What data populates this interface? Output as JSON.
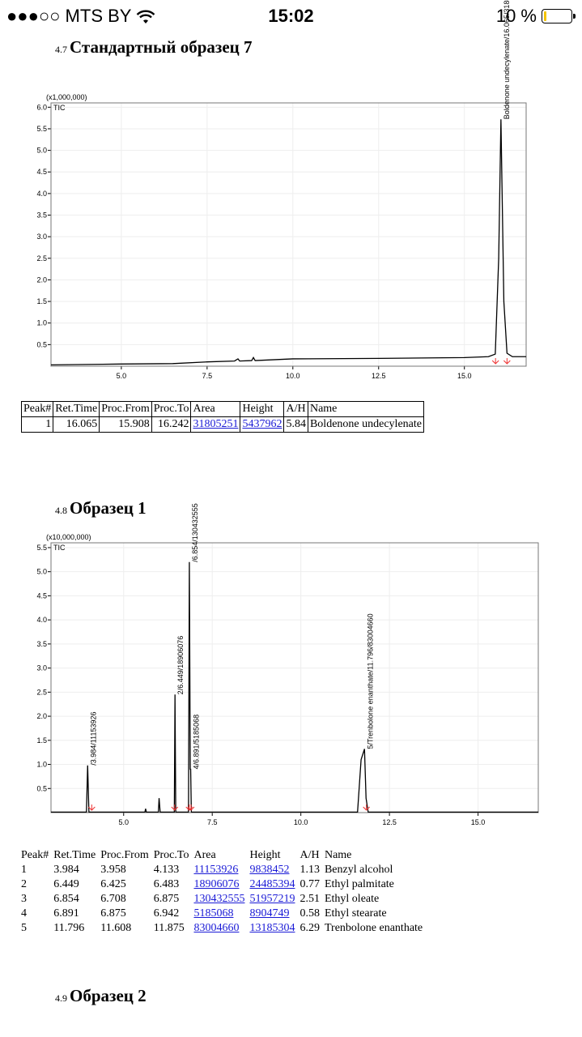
{
  "status_bar": {
    "carrier": "●●●○○ MTS BY",
    "time": "15:02",
    "battery": "10 %",
    "battery_level": 0.1,
    "battery_color": "#f5c400",
    "wifi_icon": "wifi-icon"
  },
  "sections": [
    {
      "number": "4.7",
      "title": "Стандартный образец 7"
    },
    {
      "number": "4.8",
      "title": "Образец 1"
    },
    {
      "number": "4.9",
      "title": "Образец 2"
    }
  ],
  "chart_data": [
    {
      "type": "line",
      "multiplier": "(x1,000,000)",
      "trace_label": "TIC",
      "xlim": [
        2.95,
        16.8
      ],
      "ylim": [
        0,
        6.1
      ],
      "xticks": [
        "5.0",
        "7.5",
        "10.0",
        "12.5",
        "15.0"
      ],
      "yticks": [
        "0.5",
        "1.0",
        "1.5",
        "2.0",
        "2.5",
        "3.0",
        "3.5",
        "4.0",
        "4.5",
        "5.0",
        "5.5",
        "6.0"
      ],
      "trace": [
        [
          2.95,
          0.03
        ],
        [
          5,
          0.05
        ],
        [
          6.5,
          0.06
        ],
        [
          7.5,
          0.1
        ],
        [
          8.3,
          0.12
        ],
        [
          8.4,
          0.17
        ],
        [
          8.45,
          0.12
        ],
        [
          8.8,
          0.13
        ],
        [
          8.85,
          0.2
        ],
        [
          8.9,
          0.13
        ],
        [
          10,
          0.17
        ],
        [
          12.5,
          0.18
        ],
        [
          15,
          0.2
        ],
        [
          15.7,
          0.22
        ],
        [
          15.9,
          0.28
        ],
        [
          16.0,
          2.5
        ],
        [
          16.065,
          5.72
        ],
        [
          16.15,
          1.5
        ],
        [
          16.242,
          0.3
        ],
        [
          16.4,
          0.22
        ],
        [
          16.8,
          0.22
        ]
      ],
      "peak_labels": [
        {
          "x": 16.065,
          "y": 5.72,
          "text": "Boldenone undecylenate/16.065/31805251"
        }
      ],
      "baseline_marks": [
        15.908,
        16.242
      ]
    },
    {
      "type": "line",
      "multiplier": "(x10,000,000)",
      "trace_label": "TIC",
      "xlim": [
        2.95,
        16.7
      ],
      "ylim": [
        0,
        5.6
      ],
      "xticks": [
        "5.0",
        "7.5",
        "10.0",
        "12.5",
        "15.0"
      ],
      "yticks": [
        "0.5",
        "1.0",
        "1.5",
        "2.0",
        "2.5",
        "3.0",
        "3.5",
        "4.0",
        "4.5",
        "5.0",
        "5.5"
      ],
      "trace": [
        [
          2.95,
          0.01
        ],
        [
          3.95,
          0.01
        ],
        [
          3.984,
          0.98
        ],
        [
          4.02,
          0.01
        ],
        [
          5.6,
          0.01
        ],
        [
          5.62,
          0.08
        ],
        [
          5.64,
          0.01
        ],
        [
          5.98,
          0.01
        ],
        [
          6.0,
          0.3
        ],
        [
          6.03,
          0.01
        ],
        [
          6.43,
          0.01
        ],
        [
          6.449,
          2.45
        ],
        [
          6.47,
          0.01
        ],
        [
          6.83,
          0.01
        ],
        [
          6.854,
          5.2
        ],
        [
          6.88,
          0.9
        ],
        [
          6.891,
          0.9
        ],
        [
          6.91,
          0.01
        ],
        [
          11.6,
          0.01
        ],
        [
          11.7,
          1.1
        ],
        [
          11.796,
          1.32
        ],
        [
          11.84,
          0.3
        ],
        [
          11.9,
          0.01
        ],
        [
          16.7,
          0.01
        ]
      ],
      "peak_labels": [
        {
          "x": 3.984,
          "y": 0.98,
          "text": "/3.984/11153926"
        },
        {
          "x": 6.449,
          "y": 2.45,
          "text": "2/6.449/18906076"
        },
        {
          "x": 6.854,
          "y": 5.2,
          "text": "/6.854/130432555"
        },
        {
          "x": 6.891,
          "y": 0.9,
          "text": "4/6.891/5185068"
        },
        {
          "x": 11.796,
          "y": 1.32,
          "text": "5/Trenbolone enanthate/11.796/83004660"
        }
      ],
      "baseline_marks": [
        4.1,
        6.44,
        6.85,
        6.9,
        11.85
      ]
    }
  ],
  "table1": {
    "headers": [
      "Peak#",
      "Ret.Time",
      "Proc.From",
      "Proc.To",
      "Area",
      "Height",
      "A/H",
      "Name"
    ],
    "rows": [
      [
        "1",
        "16.065",
        "15.908",
        "16.242",
        "31805251",
        "5437962",
        "5.84",
        "Boldenone undecylenate"
      ]
    ]
  },
  "table2": {
    "headers": [
      "Peak#",
      "Ret.Time",
      "Proc.From",
      "Proc.To",
      "Area",
      "Height",
      "A/H",
      "Name"
    ],
    "rows": [
      [
        "1",
        "3.984",
        "3.958",
        "4.133",
        "11153926",
        "9838452",
        "1.13",
        "Benzyl alcohol"
      ],
      [
        "2",
        "6.449",
        "6.425",
        "6.483",
        "18906076",
        "24485394",
        "0.77",
        "Ethyl palmitate"
      ],
      [
        "3",
        "6.854",
        "6.708",
        "6.875",
        "130432555",
        "51957219",
        "2.51",
        "Ethyl oleate"
      ],
      [
        "4",
        "6.891",
        "6.875",
        "6.942",
        "5185068",
        "8904749",
        "0.58",
        "Ethyl stearate"
      ],
      [
        "5",
        "11.796",
        "11.608",
        "11.875",
        "83004660",
        "13185304",
        "6.29",
        "Trenbolone enanthate"
      ]
    ]
  }
}
